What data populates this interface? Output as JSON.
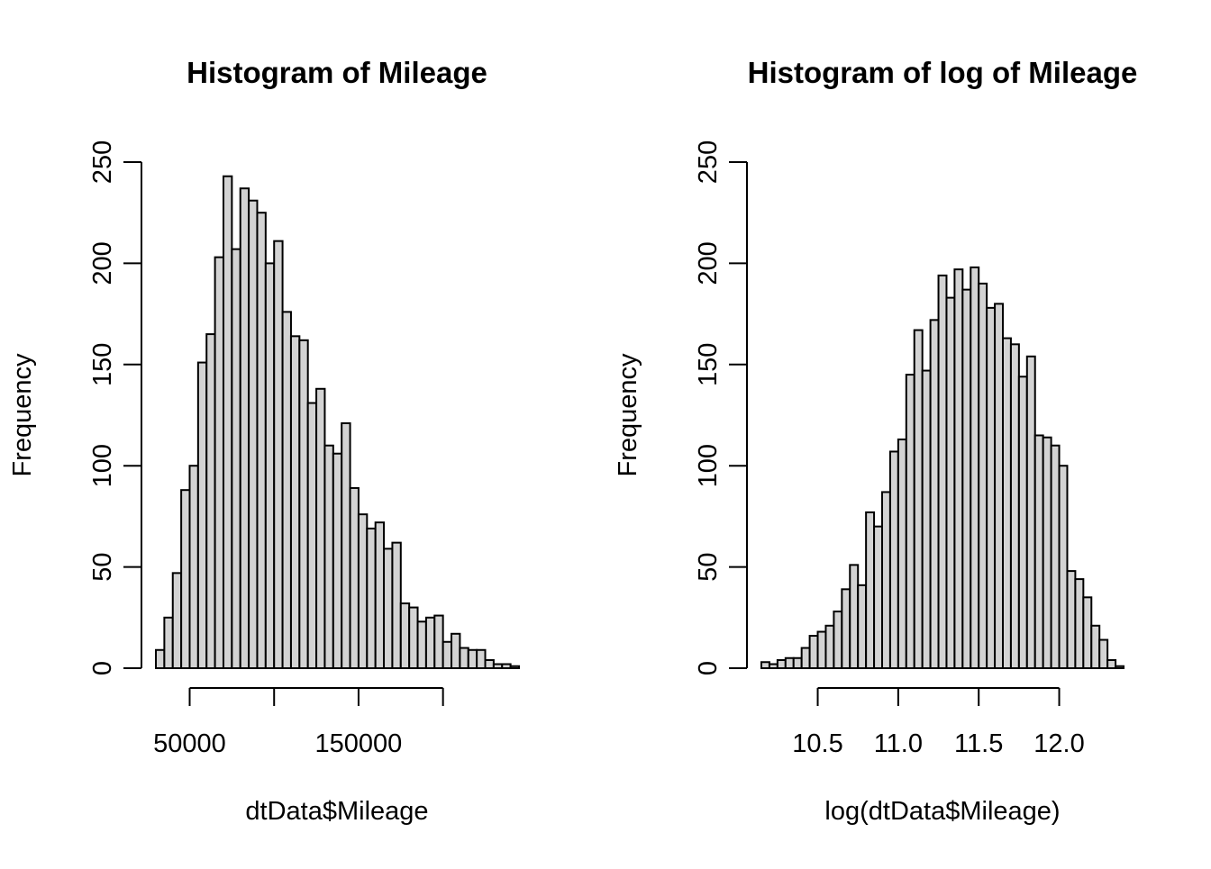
{
  "chart_data": [
    {
      "type": "bar",
      "title": "Histogram of Mileage",
      "xlabel": "dtData$Mileage",
      "ylabel": "Frequency",
      "ylim": [
        0,
        250
      ],
      "y_ticks": [
        0,
        50,
        100,
        150,
        200,
        250
      ],
      "x_ticks": [
        50000,
        100000,
        150000,
        200000
      ],
      "x_tick_labels": [
        "50000",
        "",
        "150000",
        ""
      ],
      "bin_start": 30000,
      "bin_width": 5000,
      "values": [
        9,
        25,
        47,
        88,
        100,
        151,
        165,
        203,
        243,
        207,
        237,
        231,
        225,
        200,
        211,
        176,
        164,
        162,
        131,
        138,
        110,
        106,
        121,
        89,
        76,
        69,
        72,
        59,
        62,
        32,
        30,
        23,
        25,
        26,
        13,
        17,
        10,
        9,
        9,
        4,
        2,
        2,
        1
      ],
      "grid": false
    },
    {
      "type": "bar",
      "title": "Histogram of log of Mileage",
      "xlabel": "log(dtData$Mileage)",
      "ylabel": "Frequency",
      "ylim": [
        0,
        250
      ],
      "y_ticks": [
        0,
        50,
        100,
        150,
        200,
        250
      ],
      "x_ticks": [
        10.5,
        11.0,
        11.5,
        12.0
      ],
      "x_tick_labels": [
        "10.5",
        "11.0",
        "11.5",
        "12.0"
      ],
      "bin_start": 10.15,
      "bin_width": 0.05,
      "values": [
        3,
        2,
        4,
        5,
        5,
        10,
        16,
        18,
        21,
        28,
        39,
        51,
        41,
        77,
        70,
        87,
        107,
        113,
        145,
        167,
        147,
        172,
        194,
        183,
        197,
        187,
        198,
        190,
        178,
        180,
        163,
        160,
        144,
        154,
        115,
        114,
        110,
        100,
        48,
        44,
        35,
        21,
        14,
        4,
        1
      ],
      "grid": false
    }
  ]
}
